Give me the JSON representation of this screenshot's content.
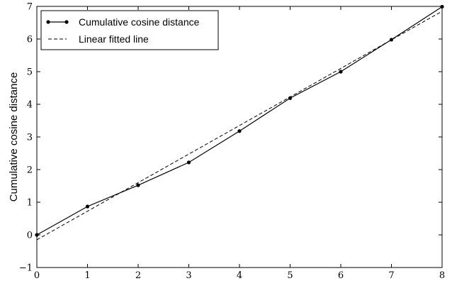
{
  "chart_data": {
    "type": "line",
    "title": "",
    "xlabel": "",
    "ylabel": "Cumulative cosine distance",
    "xlim": [
      0,
      8
    ],
    "ylim": [
      -1,
      7
    ],
    "xticks": [
      0,
      1,
      2,
      3,
      4,
      5,
      6,
      7,
      8
    ],
    "yticks": [
      -1,
      0,
      1,
      2,
      3,
      4,
      5,
      6,
      7
    ],
    "grid": false,
    "legend_position": "top-left",
    "series": [
      {
        "name": "Cumulative cosine distance",
        "style": "solid-with-markers",
        "color": "#000000",
        "x": [
          0,
          1,
          2,
          3,
          4,
          5,
          6,
          7,
          8
        ],
        "y": [
          0.0,
          0.87,
          1.52,
          2.22,
          3.18,
          4.19,
          5.0,
          5.98,
          6.99
        ]
      },
      {
        "name": "Linear fitted line",
        "style": "dashed",
        "color": "#000000",
        "x": [
          0,
          8
        ],
        "y": [
          -0.15,
          6.85
        ]
      }
    ]
  }
}
